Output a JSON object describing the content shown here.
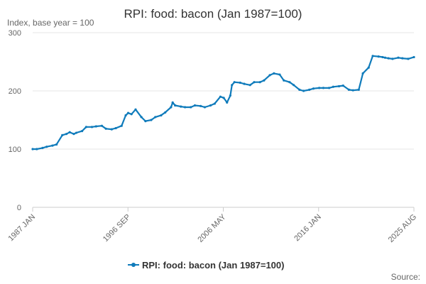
{
  "chart_data": {
    "type": "line",
    "title": "RPI: food: bacon (Jan 1987=100)",
    "ylabel": "Index, base year = 100",
    "ylim": [
      0,
      300
    ],
    "yticks": [
      "0",
      "100",
      "200",
      "300"
    ],
    "xticks": [
      "1987 JAN",
      "1996 SEP",
      "2006 MAY",
      "2016 JAN",
      "2025 AUG"
    ],
    "xlim": [
      "1987-01",
      "2025-08"
    ],
    "legend": "bottom-center",
    "grid": "horizontal",
    "series": [
      {
        "name": "RPI: food: bacon (Jan 1987=100)",
        "color": "#0f7bbb",
        "x": [
          "1987-01",
          "1987-06",
          "1988-01",
          "1988-06",
          "1989-01",
          "1989-06",
          "1990-01",
          "1990-06",
          "1990-10",
          "1991-03",
          "1991-06",
          "1992-01",
          "1992-06",
          "1993-01",
          "1993-06",
          "1994-01",
          "1994-06",
          "1995-01",
          "1995-06",
          "1996-01",
          "1996-06",
          "1996-09",
          "1997-01",
          "1997-06",
          "1998-01",
          "1998-06",
          "1999-01",
          "1999-06",
          "2000-01",
          "2000-06",
          "2001-01",
          "2001-03",
          "2001-06",
          "2002-01",
          "2002-06",
          "2003-01",
          "2003-06",
          "2004-01",
          "2004-06",
          "2005-01",
          "2005-06",
          "2006-01",
          "2006-05",
          "2006-09",
          "2007-01",
          "2007-03",
          "2007-06",
          "2008-01",
          "2008-06",
          "2009-01",
          "2009-06",
          "2010-01",
          "2010-06",
          "2011-01",
          "2011-06",
          "2012-01",
          "2012-06",
          "2013-01",
          "2013-06",
          "2014-01",
          "2014-06",
          "2015-01",
          "2015-06",
          "2016-01",
          "2016-06",
          "2017-01",
          "2017-06",
          "2018-01",
          "2018-06",
          "2019-01",
          "2019-06",
          "2020-01",
          "2020-06",
          "2021-01",
          "2021-06",
          "2022-01",
          "2022-06",
          "2022-09",
          "2023-01",
          "2023-06",
          "2024-01",
          "2024-06",
          "2025-01",
          "2025-08"
        ],
        "values": [
          100,
          100,
          102,
          104,
          106,
          108,
          124,
          126,
          129,
          126,
          128,
          131,
          138,
          138,
          139,
          140,
          135,
          134,
          136,
          140,
          158,
          162,
          160,
          168,
          155,
          148,
          150,
          155,
          158,
          163,
          172,
          180,
          175,
          173,
          172,
          172,
          175,
          174,
          172,
          175,
          178,
          190,
          188,
          180,
          192,
          210,
          215,
          214,
          212,
          210,
          215,
          215,
          218,
          227,
          230,
          228,
          218,
          215,
          210,
          202,
          200,
          202,
          204,
          205,
          205,
          205,
          207,
          208,
          209,
          202,
          201,
          202,
          230,
          240,
          260,
          259,
          258,
          257,
          256,
          255,
          257,
          256,
          255,
          258
        ]
      }
    ]
  },
  "source_label": "Source:"
}
